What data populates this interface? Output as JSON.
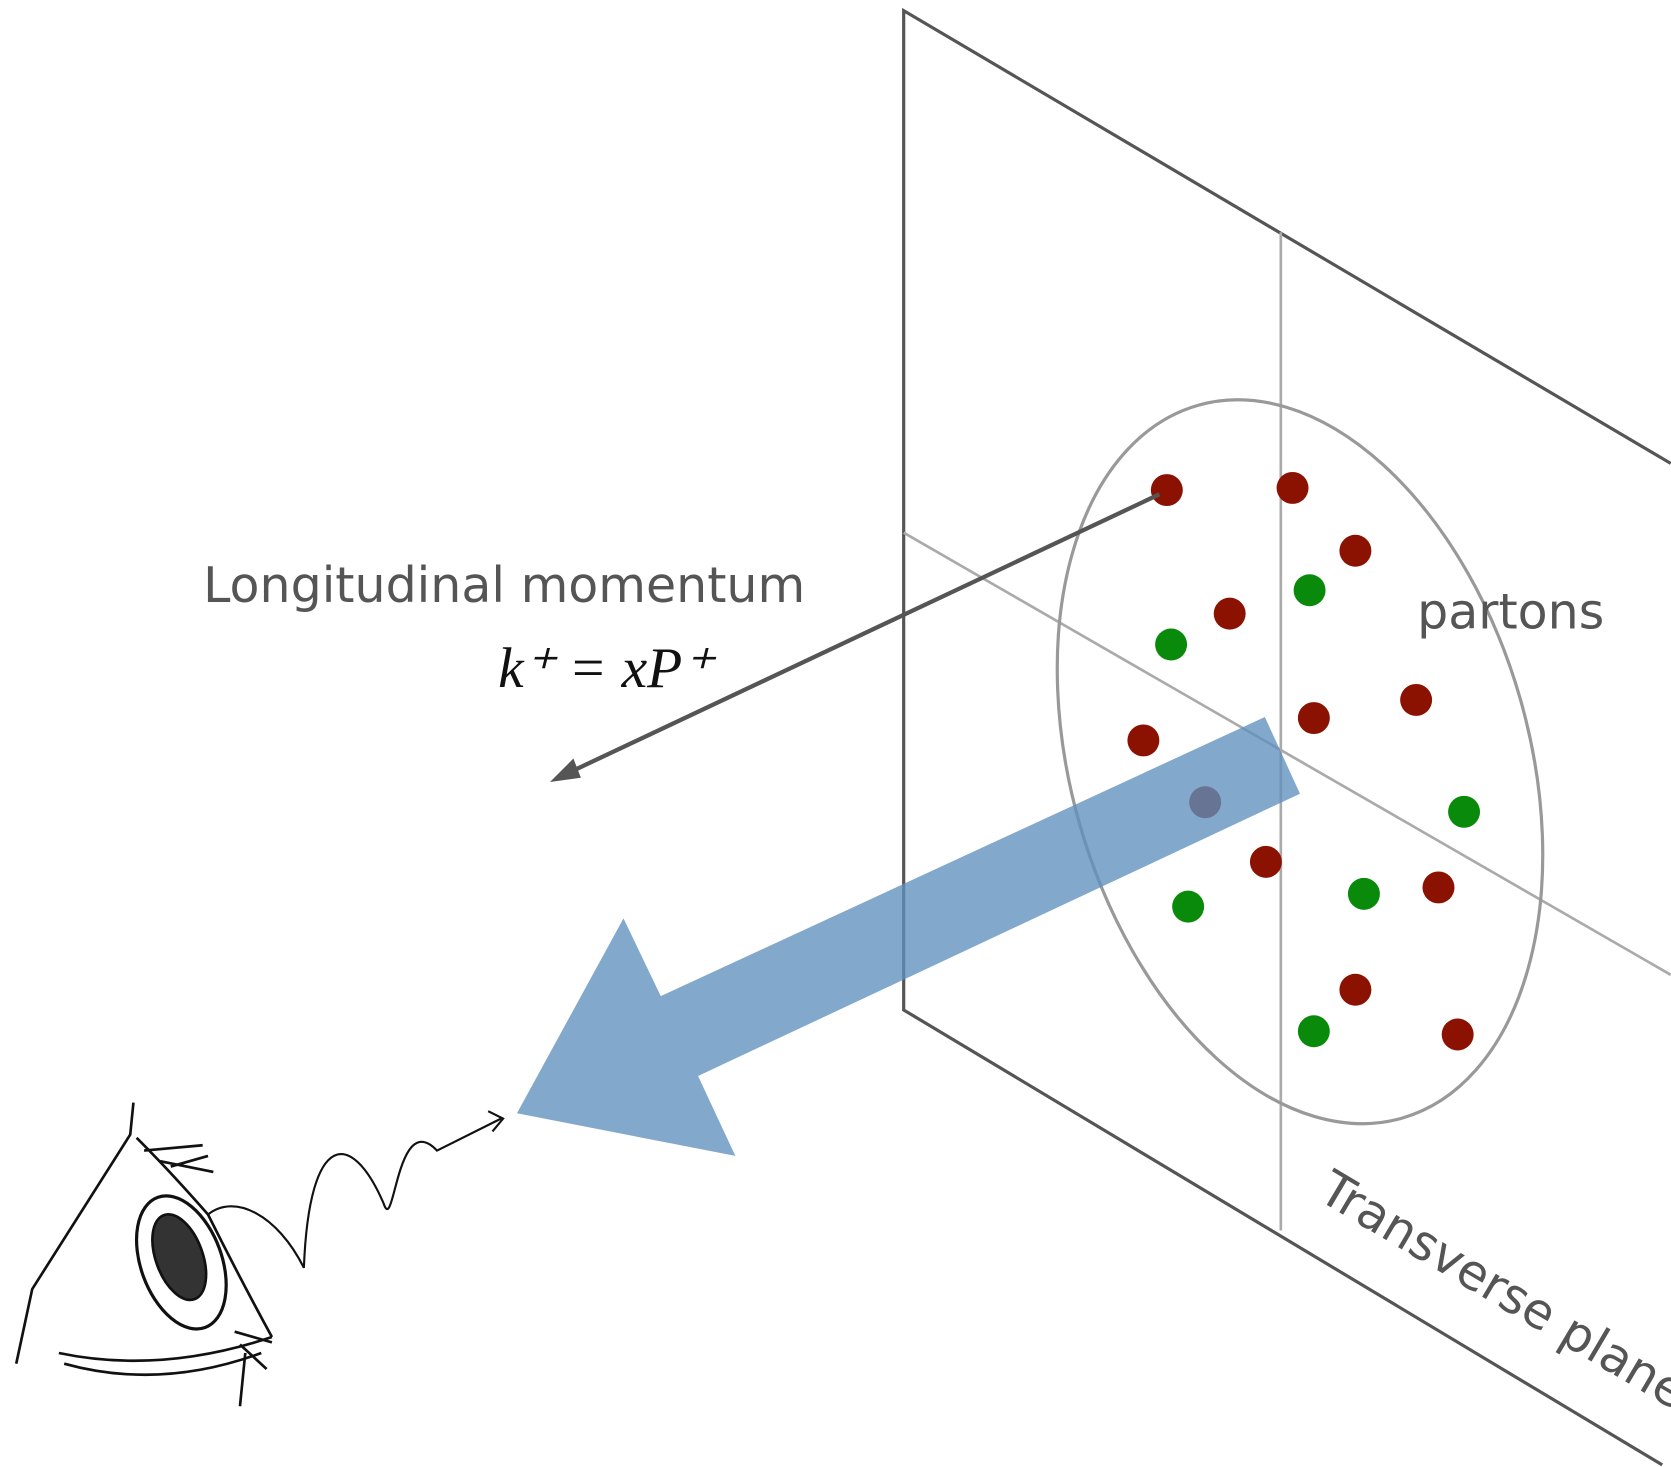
{
  "labels": {
    "longitudinal": "Longitudinal momentum",
    "formula": "k⁺ = xP⁺",
    "partons": "partons",
    "transverse": "Transverse plane"
  }
}
